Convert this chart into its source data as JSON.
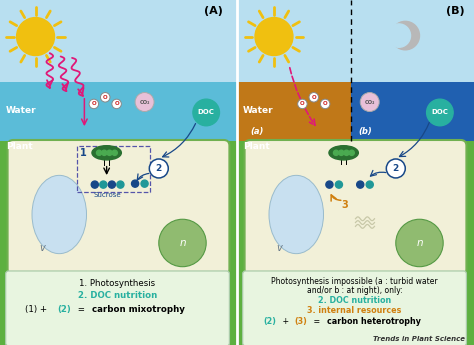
{
  "bg_color": "#5db040",
  "sky_color": "#b8dff0",
  "water_color_A": "#5bbcd8",
  "water_color_B_left": "#c07818",
  "water_color_B_right": "#2060b0",
  "cell_bg": "#f2f0d8",
  "cell_border": "#70b050",
  "vacuole_color": "#c8e0f0",
  "nucleus_color": "#90bb70",
  "chloroplast_color": "#2a7030",
  "chloroplast_inner": "#4aaa50",
  "doc_color": "#28b0a0",
  "blue_dark": "#184888",
  "blue_teal": "#209898",
  "orange_color": "#d08010",
  "sun_color": "#f0c010",
  "sun_ray_color": "#f0c010",
  "moon_color": "#b8b8b8",
  "moon_bg": "#e8e8e8",
  "pink_arrow": "#e01878",
  "co2_color": "#e8c0d8",
  "water_label": "Water",
  "plant_label": "Plant",
  "label_A": "(A)",
  "label_B": "(B)",
  "fig_width": 4.74,
  "fig_height": 3.45,
  "dpi": 100
}
